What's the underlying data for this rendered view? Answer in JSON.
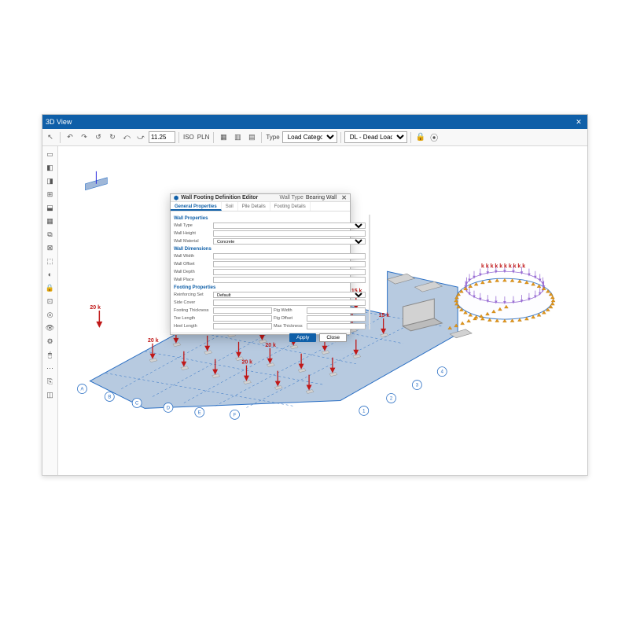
{
  "window": {
    "title": "3D View",
    "title_bg": "#0f5fa8",
    "close_label": "✕"
  },
  "toolbar": {
    "cursor_icon": "↖",
    "history_icons": [
      "↶",
      "↷",
      "↺",
      "↻",
      "⤺",
      "⤻"
    ],
    "numeric_value": "11.25",
    "iso_label": "ISO",
    "pln_label": "PLN",
    "grid_icons": [
      "▦",
      "▥",
      "▤"
    ],
    "type_label": "Type",
    "type_select": "Load Category",
    "load_select": "DL - Dead Load",
    "lock_icon": "🔒",
    "nav_icon": "⦿"
  },
  "left_tools": {
    "select": "▭",
    "items": [
      "▭",
      "◧",
      "◨",
      "⊞",
      "⬓",
      "▦",
      "⧉",
      "⊠",
      "⬚",
      "◐",
      "🔒",
      "⊡",
      "◎",
      "👁",
      "⚙",
      "🖱",
      "⋯",
      "⎘",
      "◫"
    ]
  },
  "dialog": {
    "title": "Wall Footing Definition Editor",
    "icon": "⬢",
    "wall_type_label": "Wall Type",
    "wall_type_value": "Bearing Wall",
    "tabs": [
      "General Properties",
      "Soil",
      "Pile Details",
      "Footing Details"
    ],
    "active_tab_index": 0,
    "section1": "Wall Properties",
    "rows1": [
      {
        "label": "Wall Type",
        "value": ""
      },
      {
        "label": "Wall Height",
        "value": ""
      },
      {
        "label": "Wall Material",
        "value": "Concrete"
      }
    ],
    "section2": "Wall Dimensions",
    "rows2": [
      {
        "label": "Wall Width",
        "value": ""
      },
      {
        "label": "Wall Offset",
        "value": ""
      },
      {
        "label": "Wall Depth",
        "value": ""
      },
      {
        "label": "Wall Place",
        "value": ""
      }
    ],
    "section3": "Footing Properties",
    "rows3": [
      {
        "label": "Reinforcing Set",
        "value": "Default"
      },
      {
        "label": "Side Cover",
        "value": ""
      },
      {
        "label": "Footing Thickness",
        "value": ""
      },
      {
        "label": "Toe Length",
        "value": ""
      },
      {
        "label": "Heel Length",
        "value": ""
      }
    ],
    "rows3_right": [
      {
        "label": "Ftg Width",
        "value": ""
      },
      {
        "label": "Ftg Offset",
        "value": ""
      },
      {
        "label": "Max Thickness",
        "value": ""
      }
    ],
    "apply": "Apply",
    "close": "Close",
    "diagram_colors": {
      "bg": "#fbf3ea",
      "wall": "#c9b08c",
      "footing": "#b89a78",
      "outline": "#8a6a42"
    }
  },
  "model": {
    "slab_color": "#7c9fc7",
    "slab_stroke": "#2a6fc4",
    "grid_line_color": "#2a6fc4",
    "grid_bubble_stroke": "#2a6fc4",
    "load_arrow_color": "#c01818",
    "load_label_color": "#c01818",
    "support_color": "#e0961a",
    "wall_color": "#d2d2d2",
    "tank_color": "#9a6fd4",
    "ucs_colors": {
      "x": "#d22",
      "y": "#2a2",
      "z": "#22d"
    },
    "load_values": {
      "typical": "20 k",
      "tank_near": "15 k"
    },
    "grid_letters": [
      "A",
      "B",
      "C",
      "D",
      "E",
      "F",
      "G",
      "H"
    ],
    "grid_numbers": [
      "1",
      "2",
      "3",
      "4",
      "5",
      "6"
    ]
  }
}
